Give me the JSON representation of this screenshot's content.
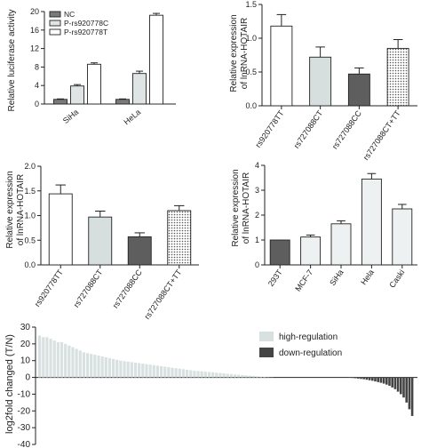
{
  "chart_data": [
    {
      "id": "A",
      "type": "bar",
      "ylabel": "Relative luciferase activity",
      "ylim": [
        0,
        20
      ],
      "yticks": [
        0,
        4,
        8,
        12,
        16,
        20
      ],
      "categories": [
        "SiHa",
        "HeLa"
      ],
      "legend_position": "top-left",
      "series": [
        {
          "name": "NC",
          "color": "#7a7a7a",
          "values": [
            1.0,
            1.0
          ],
          "errors": [
            0.1,
            0.1
          ]
        },
        {
          "name": "P-rs920778C",
          "color": "#dfe5e5",
          "values": [
            3.9,
            6.6
          ],
          "errors": [
            0.3,
            0.5
          ]
        },
        {
          "name": "P-rs920778T",
          "color": "#ffffff",
          "values": [
            8.6,
            19.2
          ],
          "errors": [
            0.3,
            0.4
          ]
        }
      ]
    },
    {
      "id": "B",
      "type": "bar",
      "ylabel": [
        "Relative expression",
        "of lnRNA-HOTAIR"
      ],
      "ylim": [
        0,
        1.5
      ],
      "yticks": [
        0,
        0.5,
        1.0,
        1.5
      ],
      "ytick_labels": [
        "0.0",
        "0.5",
        "1.0",
        "1.5"
      ],
      "categories": [
        "rs920778TT",
        "rs727088CT",
        "rs727088CC",
        "rs727088CT+TT"
      ],
      "values": [
        1.18,
        0.72,
        0.47,
        0.85
      ],
      "errors": [
        0.17,
        0.15,
        0.09,
        0.13
      ],
      "colors": [
        "#ffffff",
        "#d6dede",
        "#5e5e5e",
        "dots"
      ]
    },
    {
      "id": "C",
      "type": "bar",
      "ylabel": [
        "Relative expression",
        "of lnRNA-HOTAIR"
      ],
      "ylim": [
        0,
        2.0
      ],
      "yticks": [
        0,
        0.5,
        1.0,
        1.5,
        2.0
      ],
      "ytick_labels": [
        "0.0",
        "0.5",
        "1.0",
        "1.5",
        "2.0"
      ],
      "categories": [
        "rs920778TT",
        "rs727088CT",
        "rs727088CC",
        "rs727088CT+TT"
      ],
      "values": [
        1.44,
        0.97,
        0.57,
        1.1
      ],
      "errors": [
        0.18,
        0.12,
        0.08,
        0.1
      ],
      "colors": [
        "#ffffff",
        "#d6dede",
        "#5e5e5e",
        "dots"
      ]
    },
    {
      "id": "D",
      "type": "bar",
      "ylabel": [
        "Relative expression",
        "of lnRNA-HOTAIR"
      ],
      "ylim": [
        0,
        4
      ],
      "yticks": [
        0,
        1,
        2,
        3,
        4
      ],
      "categories": [
        "293T",
        "MCF-7",
        "SiHa",
        "Hela",
        "Caski"
      ],
      "values": [
        1.0,
        1.12,
        1.65,
        3.45,
        2.25
      ],
      "errors": [
        0.0,
        0.08,
        0.12,
        0.22,
        0.18
      ],
      "colors": [
        "#5e5e5e",
        "#eef1f1",
        "#eef1f1",
        "#eef1f1",
        "#eef1f1"
      ]
    },
    {
      "id": "E",
      "type": "bar",
      "ylabel": "log2fold changed (T/N)",
      "ylim": [
        -40,
        30
      ],
      "yticks": [
        -40,
        -30,
        -20,
        -10,
        0,
        10,
        20,
        30
      ],
      "legend_position": "top-right",
      "legend": [
        {
          "name": "high-regulation",
          "color": "#d8e0e0"
        },
        {
          "name": "down-regulation",
          "color": "#444444"
        }
      ],
      "values": [
        25,
        24,
        24,
        23,
        22,
        21,
        21,
        20,
        19,
        18,
        17,
        16,
        15,
        14.5,
        14,
        13.5,
        13,
        12.5,
        12,
        11.5,
        11,
        10.5,
        10,
        9.7,
        9.4,
        9.1,
        8.8,
        8.5,
        8.2,
        7.9,
        7.6,
        7.3,
        7,
        6.7,
        6.4,
        6.1,
        5.8,
        5.5,
        5.2,
        4.9,
        4.6,
        4.3,
        4.0,
        3.8,
        3.6,
        3.4,
        3.2,
        3.0,
        2.8,
        2.6,
        2.4,
        2.2,
        2.0,
        1.8,
        1.6,
        1.4,
        1.2,
        1.0,
        0.8,
        0.6,
        0.4,
        0.3,
        0.2,
        0.1,
        -0.2,
        -0.3,
        -0.5,
        -0.7,
        -0.9,
        -1.1,
        -1.4,
        -1.7,
        -2.0,
        -2.4,
        -2.8,
        -3.2,
        -3.7,
        -4.3,
        -5.0,
        -6.0,
        -7.0,
        -8.5,
        -10.0,
        -12.0,
        -15.0,
        -19.0,
        -23.0
      ]
    }
  ]
}
